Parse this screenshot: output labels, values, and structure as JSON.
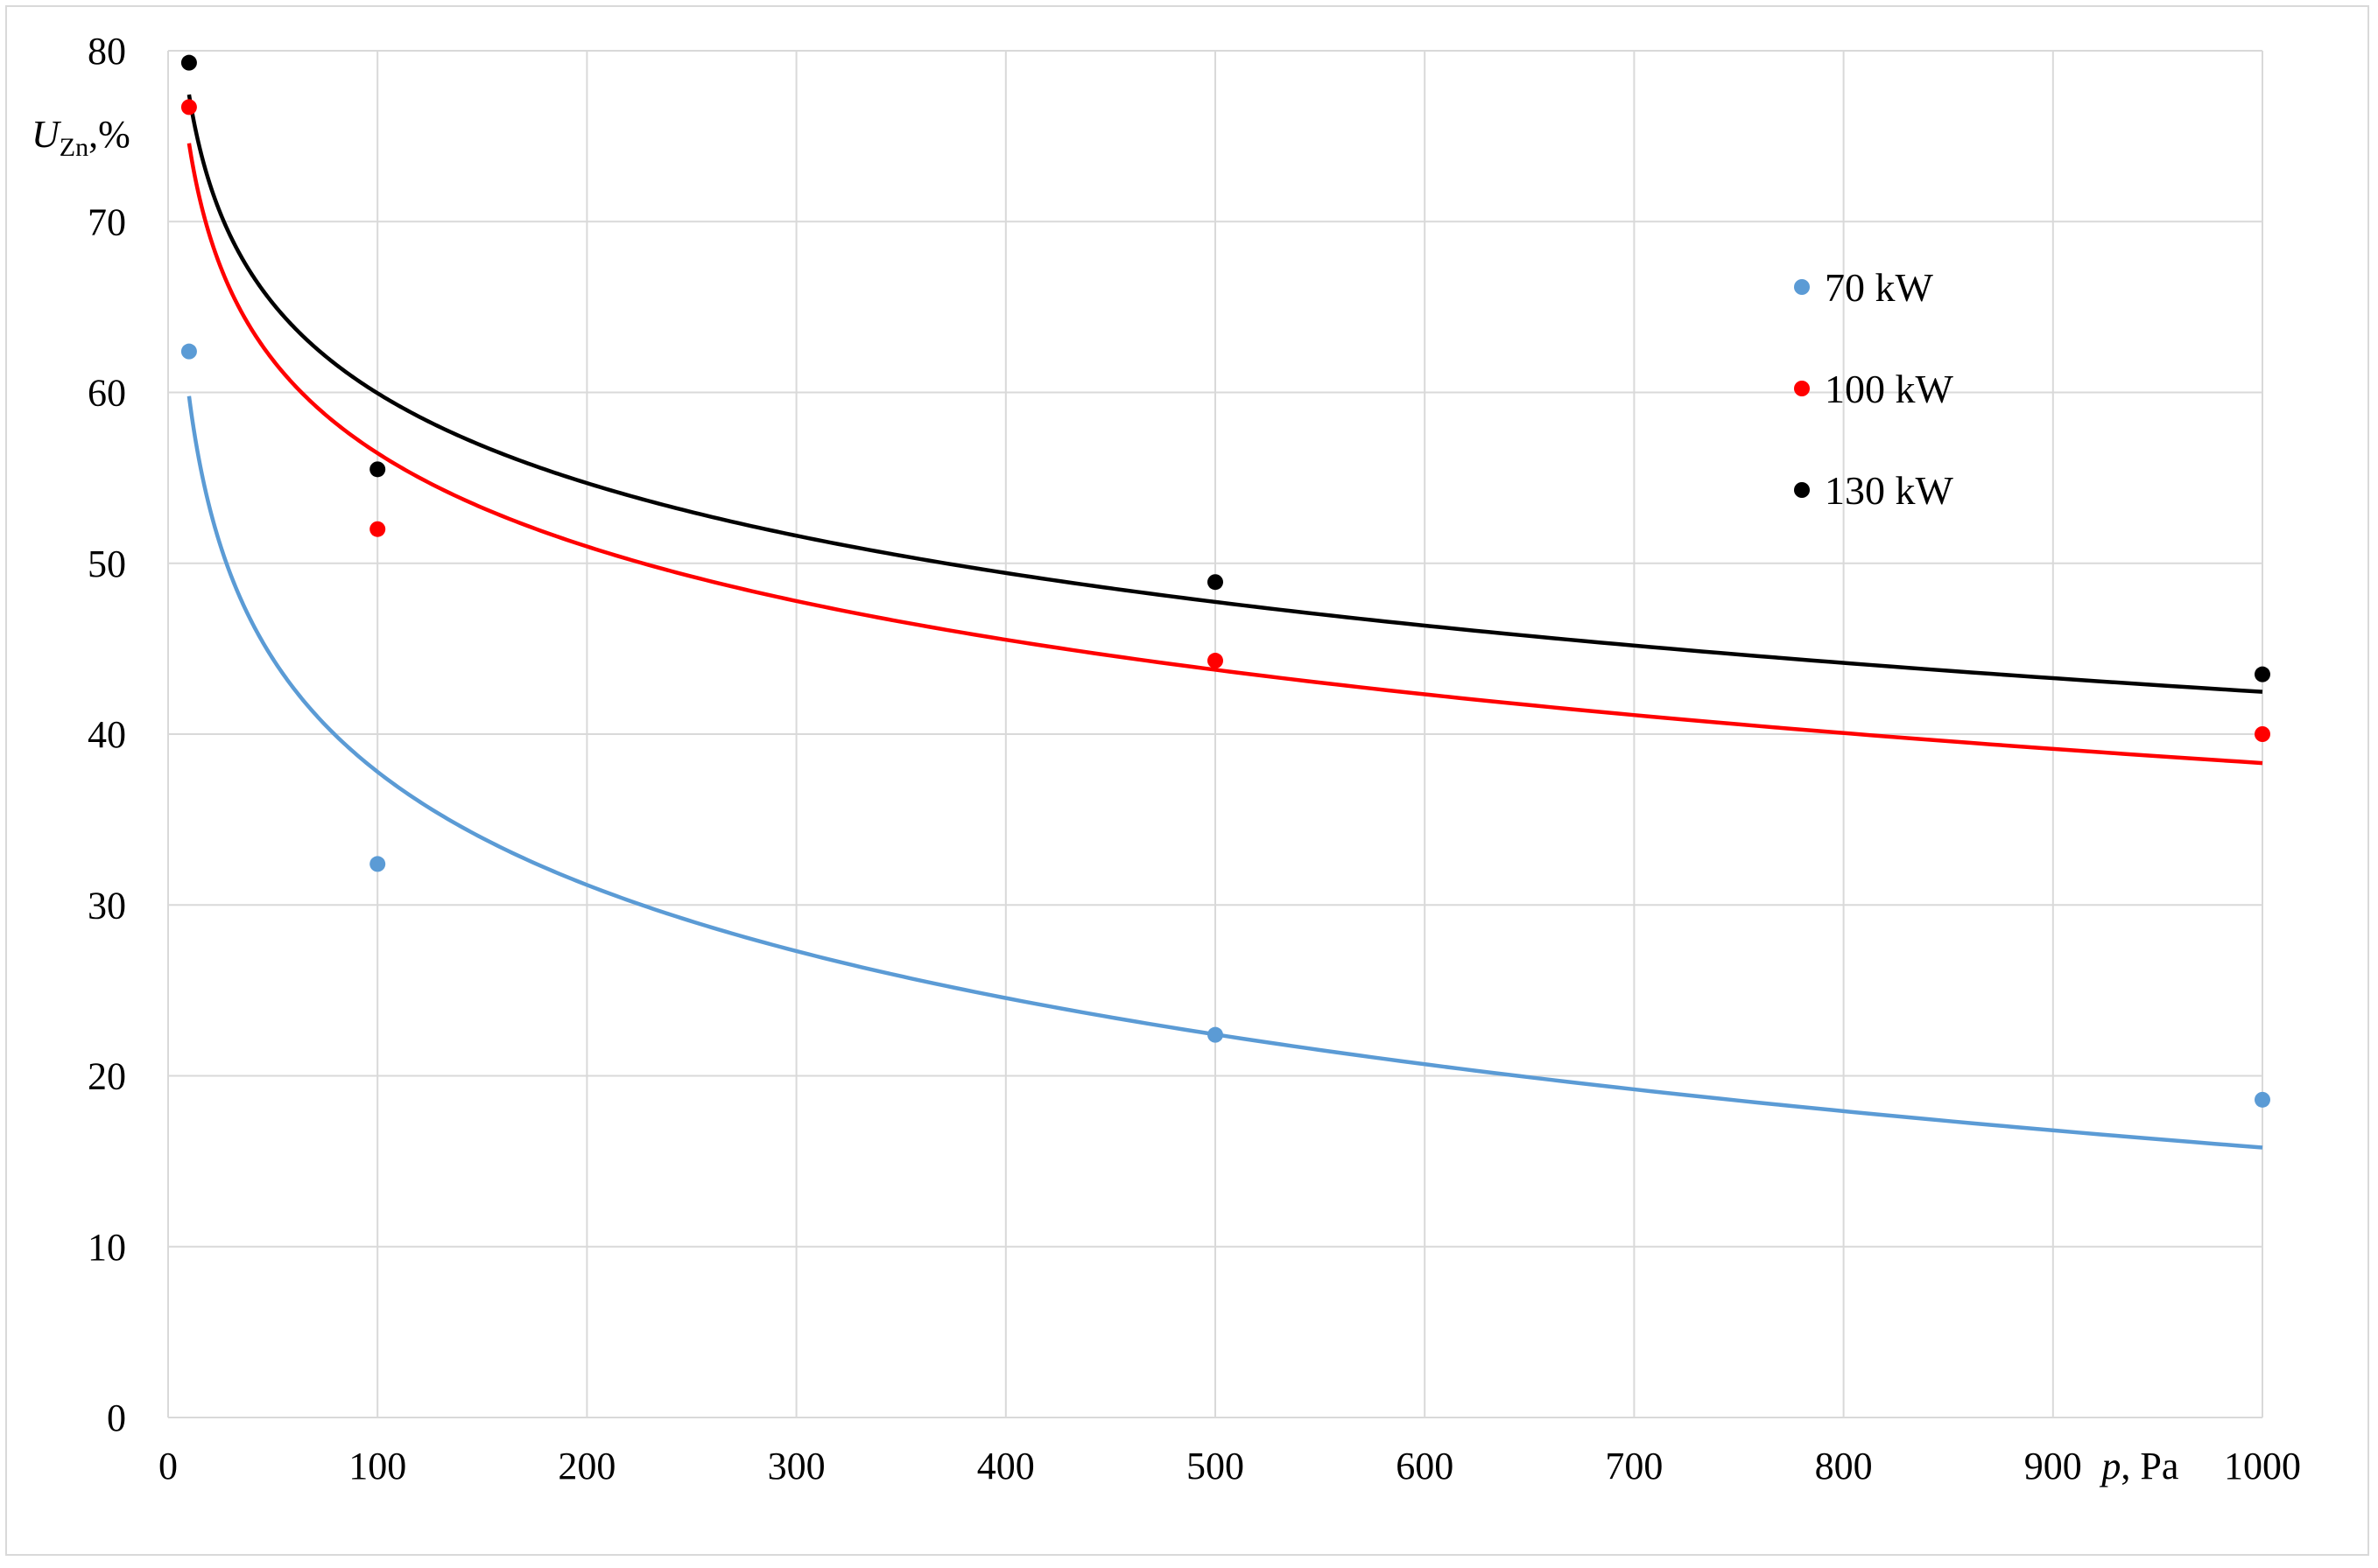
{
  "chart_data": {
    "type": "scatter",
    "ylabel_main": "U",
    "ylabel_sub": "Zn",
    "ylabel_suffix": ",%",
    "xlabel_var": "p",
    "xlabel_unit": ", Pa",
    "xlim": [
      0,
      1000
    ],
    "ylim": [
      0,
      80
    ],
    "xticks": [
      0,
      100,
      200,
      300,
      400,
      500,
      600,
      700,
      800,
      900,
      1000
    ],
    "yticks": [
      0,
      10,
      20,
      30,
      40,
      50,
      60,
      70,
      80
    ],
    "grid": true,
    "legend_position": "right",
    "series": [
      {
        "name": "70 kW",
        "color": "#5b9bd5",
        "points": [
          [
            10,
            62.4
          ],
          [
            100,
            32.4
          ],
          [
            500,
            22.4
          ],
          [
            1000,
            18.6
          ]
        ],
        "trend": {
          "type": "log",
          "points": [
            [
              10,
              59.8
            ],
            [
              100,
              37.8
            ],
            [
              500,
              22.3
            ],
            [
              1000,
              15.9
            ]
          ]
        }
      },
      {
        "name": "100 kW",
        "color": "#ff0000",
        "points": [
          [
            10,
            76.7
          ],
          [
            100,
            52.0
          ],
          [
            500,
            44.3
          ],
          [
            1000,
            40.0
          ]
        ],
        "trend": {
          "type": "log",
          "points": [
            [
              10,
              74.6
            ],
            [
              100,
              56.4
            ],
            [
              500,
              43.8
            ],
            [
              1000,
              38.3
            ]
          ]
        }
      },
      {
        "name": "130 kW",
        "color": "#000000",
        "points": [
          [
            10,
            79.3
          ],
          [
            100,
            55.5
          ],
          [
            500,
            48.9
          ],
          [
            1000,
            43.5
          ]
        ],
        "trend": {
          "type": "log",
          "points": [
            [
              10,
              77.4
            ],
            [
              100,
              60.0
            ],
            [
              500,
              47.8
            ],
            [
              1000,
              42.4
            ]
          ]
        }
      }
    ]
  }
}
